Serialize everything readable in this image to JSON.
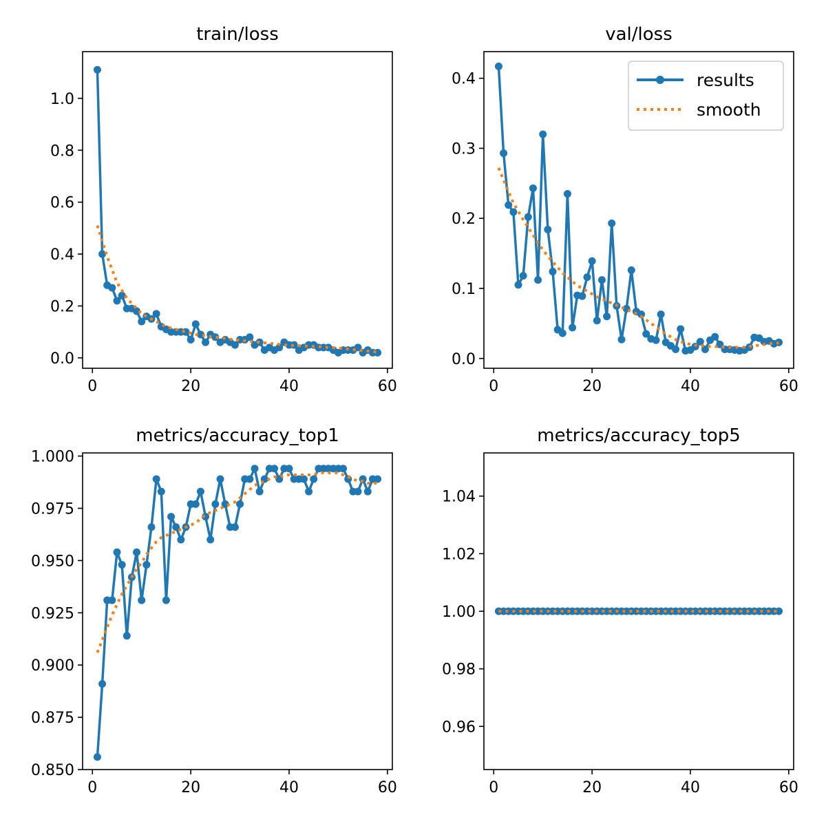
{
  "chart_data": [
    {
      "type": "line",
      "title": "train/loss",
      "xlim": [
        -2,
        61
      ],
      "ylim": [
        -0.04,
        1.18
      ],
      "xticks": [
        0,
        20,
        40,
        60
      ],
      "xtick_labels": [
        "0",
        "20",
        "40",
        "60"
      ],
      "yticks": [
        0.0,
        0.2,
        0.4,
        0.6,
        0.8,
        1.0
      ],
      "ytick_labels": [
        "0.0",
        "0.2",
        "0.4",
        "0.6",
        "0.8",
        "1.0"
      ],
      "grid": false,
      "x": [
        1,
        2,
        3,
        4,
        5,
        6,
        7,
        8,
        9,
        10,
        11,
        12,
        13,
        14,
        15,
        16,
        17,
        18,
        19,
        20,
        21,
        22,
        23,
        24,
        25,
        26,
        27,
        28,
        29,
        30,
        31,
        32,
        33,
        34,
        35,
        36,
        37,
        38,
        39,
        40,
        41,
        42,
        43,
        44,
        45,
        46,
        47,
        48,
        49,
        50,
        51,
        52,
        53,
        54,
        55,
        56,
        57,
        58
      ],
      "series": [
        {
          "name": "results",
          "color": "#1f77b4",
          "style": "line-marker",
          "values": [
            1.11,
            0.4,
            0.28,
            0.27,
            0.22,
            0.24,
            0.19,
            0.19,
            0.18,
            0.14,
            0.16,
            0.15,
            0.17,
            0.12,
            0.11,
            0.1,
            0.1,
            0.1,
            0.1,
            0.07,
            0.13,
            0.09,
            0.06,
            0.09,
            0.08,
            0.06,
            0.07,
            0.06,
            0.05,
            0.07,
            0.07,
            0.08,
            0.05,
            0.06,
            0.03,
            0.04,
            0.03,
            0.04,
            0.06,
            0.05,
            0.05,
            0.03,
            0.04,
            0.05,
            0.05,
            0.04,
            0.04,
            0.04,
            0.03,
            0.02,
            0.03,
            0.03,
            0.03,
            0.04,
            0.02,
            0.03,
            0.02,
            0.02
          ]
        },
        {
          "name": "smooth",
          "color": "#ff7f0e",
          "style": "dotted",
          "values": [
            0.51,
            0.45,
            0.39,
            0.34,
            0.29,
            0.26,
            0.23,
            0.21,
            0.19,
            0.17,
            0.16,
            0.15,
            0.14,
            0.13,
            0.12,
            0.115,
            0.11,
            0.105,
            0.1,
            0.095,
            0.09,
            0.088,
            0.085,
            0.082,
            0.08,
            0.077,
            0.075,
            0.072,
            0.07,
            0.068,
            0.066,
            0.064,
            0.062,
            0.06,
            0.058,
            0.056,
            0.054,
            0.052,
            0.05,
            0.049,
            0.048,
            0.047,
            0.046,
            0.045,
            0.044,
            0.043,
            0.042,
            0.04,
            0.039,
            0.038,
            0.036,
            0.034,
            0.032,
            0.03,
            0.028,
            0.026,
            0.024,
            0.022
          ]
        }
      ]
    },
    {
      "type": "line",
      "title": "val/loss",
      "xlim": [
        -2,
        61
      ],
      "ylim": [
        -0.014,
        0.438
      ],
      "xticks": [
        0,
        20,
        40,
        60
      ],
      "xtick_labels": [
        "0",
        "20",
        "40",
        "60"
      ],
      "yticks": [
        0.0,
        0.1,
        0.2,
        0.3,
        0.4
      ],
      "ytick_labels": [
        "0.0",
        "0.1",
        "0.2",
        "0.3",
        "0.4"
      ],
      "grid": false,
      "legend": {
        "placement": "top-right",
        "entries": [
          "results",
          "smooth"
        ]
      },
      "x": [
        1,
        2,
        3,
        4,
        5,
        6,
        7,
        8,
        9,
        10,
        11,
        12,
        13,
        14,
        15,
        16,
        17,
        18,
        19,
        20,
        21,
        22,
        23,
        24,
        25,
        26,
        27,
        28,
        29,
        30,
        31,
        32,
        33,
        34,
        35,
        36,
        37,
        38,
        39,
        40,
        41,
        42,
        43,
        44,
        45,
        46,
        47,
        48,
        49,
        50,
        51,
        52,
        53,
        54,
        55,
        56,
        57,
        58
      ],
      "series": [
        {
          "name": "results",
          "color": "#1f77b4",
          "style": "line-marker",
          "values": [
            0.417,
            0.293,
            0.219,
            0.209,
            0.105,
            0.118,
            0.202,
            0.243,
            0.112,
            0.32,
            0.184,
            0.124,
            0.041,
            0.036,
            0.235,
            0.044,
            0.09,
            0.089,
            0.116,
            0.139,
            0.054,
            0.112,
            0.06,
            0.193,
            0.075,
            0.027,
            0.071,
            0.126,
            0.067,
            0.063,
            0.035,
            0.028,
            0.026,
            0.063,
            0.023,
            0.018,
            0.013,
            0.042,
            0.011,
            0.012,
            0.017,
            0.024,
            0.013,
            0.026,
            0.031,
            0.02,
            0.013,
            0.013,
            0.012,
            0.011,
            0.012,
            0.016,
            0.03,
            0.029,
            0.024,
            0.025,
            0.021,
            0.023
          ]
        },
        {
          "name": "smooth",
          "color": "#ff7f0e",
          "style": "dotted",
          "values": [
            0.272,
            0.255,
            0.238,
            0.222,
            0.21,
            0.198,
            0.187,
            0.176,
            0.165,
            0.155,
            0.146,
            0.138,
            0.13,
            0.122,
            0.116,
            0.11,
            0.104,
            0.1,
            0.096,
            0.092,
            0.088,
            0.085,
            0.082,
            0.079,
            0.076,
            0.073,
            0.07,
            0.067,
            0.064,
            0.06,
            0.055,
            0.05,
            0.045,
            0.04,
            0.035,
            0.031,
            0.027,
            0.024,
            0.022,
            0.02,
            0.019,
            0.018,
            0.018,
            0.017,
            0.017,
            0.017,
            0.016,
            0.016,
            0.016,
            0.016,
            0.016,
            0.017,
            0.018,
            0.019,
            0.02,
            0.021,
            0.022,
            0.022
          ]
        }
      ]
    },
    {
      "type": "line",
      "title": "metrics/accuracy_top1",
      "xlim": [
        -2,
        61
      ],
      "ylim": [
        0.85,
        1.0015
      ],
      "xticks": [
        0,
        20,
        40,
        60
      ],
      "xtick_labels": [
        "0",
        "20",
        "40",
        "60"
      ],
      "yticks": [
        0.85,
        0.875,
        0.9,
        0.925,
        0.95,
        0.975,
        1.0
      ],
      "ytick_labels": [
        "0.850",
        "0.875",
        "0.900",
        "0.925",
        "0.950",
        "0.975",
        "1.000"
      ],
      "grid": false,
      "x": [
        1,
        2,
        3,
        4,
        5,
        6,
        7,
        8,
        9,
        10,
        11,
        12,
        13,
        14,
        15,
        16,
        17,
        18,
        19,
        20,
        21,
        22,
        23,
        24,
        25,
        26,
        27,
        28,
        29,
        30,
        31,
        32,
        33,
        34,
        35,
        36,
        37,
        38,
        39,
        40,
        41,
        42,
        43,
        44,
        45,
        46,
        47,
        48,
        49,
        50,
        51,
        52,
        53,
        54,
        55,
        56,
        57,
        58
      ],
      "series": [
        {
          "name": "results",
          "color": "#1f77b4",
          "style": "line-marker",
          "values": [
            0.856,
            0.891,
            0.931,
            0.931,
            0.954,
            0.948,
            0.914,
            0.942,
            0.954,
            0.931,
            0.948,
            0.966,
            0.989,
            0.983,
            0.931,
            0.971,
            0.966,
            0.96,
            0.966,
            0.977,
            0.977,
            0.983,
            0.971,
            0.96,
            0.977,
            0.989,
            0.977,
            0.966,
            0.966,
            0.977,
            0.989,
            0.989,
            0.994,
            0.983,
            0.989,
            0.994,
            0.994,
            0.989,
            0.994,
            0.994,
            0.989,
            0.989,
            0.989,
            0.983,
            0.989,
            0.994,
            0.994,
            0.994,
            0.994,
            0.994,
            0.994,
            0.989,
            0.983,
            0.983,
            0.989,
            0.983,
            0.989,
            0.989
          ]
        },
        {
          "name": "smooth",
          "color": "#ff7f0e",
          "style": "dotted",
          "values": [
            0.906,
            0.912,
            0.918,
            0.924,
            0.929,
            0.934,
            0.938,
            0.942,
            0.946,
            0.949,
            0.953,
            0.956,
            0.959,
            0.961,
            0.962,
            0.963,
            0.964,
            0.965,
            0.966,
            0.967,
            0.968,
            0.97,
            0.972,
            0.973,
            0.974,
            0.975,
            0.976,
            0.977,
            0.978,
            0.98,
            0.982,
            0.984,
            0.986,
            0.987,
            0.988,
            0.989,
            0.99,
            0.99,
            0.991,
            0.991,
            0.991,
            0.991,
            0.991,
            0.991,
            0.991,
            0.992,
            0.992,
            0.992,
            0.992,
            0.992,
            0.991,
            0.99,
            0.989,
            0.988,
            0.988,
            0.987,
            0.987,
            0.987
          ]
        }
      ]
    },
    {
      "type": "line",
      "title": "metrics/accuracy_top5",
      "xlim": [
        -2,
        61
      ],
      "ylim": [
        0.945,
        1.055
      ],
      "xticks": [
        0,
        20,
        40,
        60
      ],
      "xtick_labels": [
        "0",
        "20",
        "40",
        "60"
      ],
      "yticks": [
        0.96,
        0.98,
        1.0,
        1.02,
        1.04
      ],
      "ytick_labels": [
        "0.96",
        "0.98",
        "1.00",
        "1.02",
        "1.04"
      ],
      "grid": false,
      "x": [
        1,
        2,
        3,
        4,
        5,
        6,
        7,
        8,
        9,
        10,
        11,
        12,
        13,
        14,
        15,
        16,
        17,
        18,
        19,
        20,
        21,
        22,
        23,
        24,
        25,
        26,
        27,
        28,
        29,
        30,
        31,
        32,
        33,
        34,
        35,
        36,
        37,
        38,
        39,
        40,
        41,
        42,
        43,
        44,
        45,
        46,
        47,
        48,
        49,
        50,
        51,
        52,
        53,
        54,
        55,
        56,
        57,
        58
      ],
      "series": [
        {
          "name": "results",
          "color": "#1f77b4",
          "style": "line-marker",
          "values": [
            1,
            1,
            1,
            1,
            1,
            1,
            1,
            1,
            1,
            1,
            1,
            1,
            1,
            1,
            1,
            1,
            1,
            1,
            1,
            1,
            1,
            1,
            1,
            1,
            1,
            1,
            1,
            1,
            1,
            1,
            1,
            1,
            1,
            1,
            1,
            1,
            1,
            1,
            1,
            1,
            1,
            1,
            1,
            1,
            1,
            1,
            1,
            1,
            1,
            1,
            1,
            1,
            1,
            1,
            1,
            1,
            1,
            1
          ]
        },
        {
          "name": "smooth",
          "color": "#ff7f0e",
          "style": "dotted",
          "values": [
            1,
            1,
            1,
            1,
            1,
            1,
            1,
            1,
            1,
            1,
            1,
            1,
            1,
            1,
            1,
            1,
            1,
            1,
            1,
            1,
            1,
            1,
            1,
            1,
            1,
            1,
            1,
            1,
            1,
            1,
            1,
            1,
            1,
            1,
            1,
            1,
            1,
            1,
            1,
            1,
            1,
            1,
            1,
            1,
            1,
            1,
            1,
            1,
            1,
            1,
            1,
            1,
            1,
            1,
            1,
            1,
            1,
            1
          ]
        }
      ]
    }
  ]
}
